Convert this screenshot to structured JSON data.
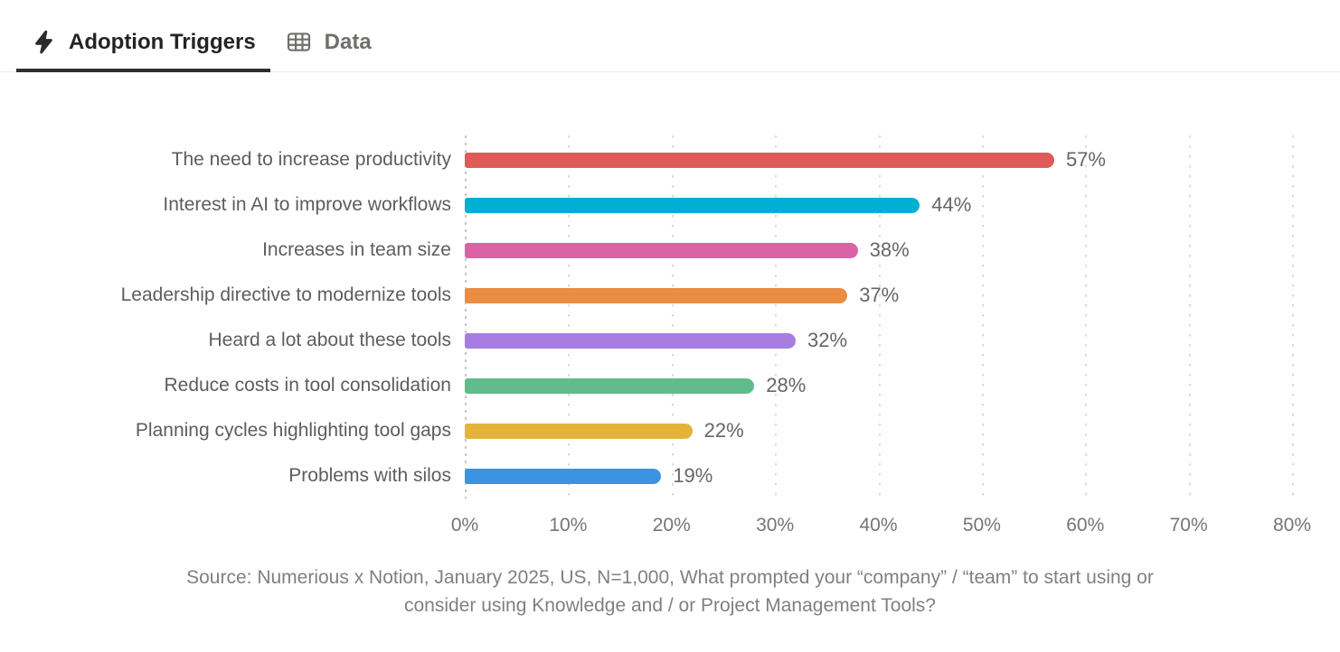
{
  "tabs": [
    {
      "label": "Adoption Triggers",
      "icon": "lightning-icon",
      "active": true
    },
    {
      "label": "Data",
      "icon": "table-icon",
      "active": false
    }
  ],
  "chart_data": {
    "type": "bar",
    "orientation": "horizontal",
    "title": "Adoption Triggers",
    "categories": [
      "The need to increase productivity",
      "Interest in AI to improve workflows",
      "Increases in team size",
      "Leadership directive to modernize tools",
      "Heard a lot about these tools",
      "Reduce costs in tool consolidation",
      "Planning cycles highlighting tool gaps",
      "Problems with silos"
    ],
    "values": [
      57,
      44,
      38,
      37,
      32,
      28,
      22,
      19
    ],
    "value_labels": [
      "57%",
      "44%",
      "38%",
      "37%",
      "32%",
      "28%",
      "22%",
      "19%"
    ],
    "bar_colors": [
      "#DE5B57",
      "#00AFD2",
      "#DB63A5",
      "#E98C44",
      "#A87DE1",
      "#61BB8C",
      "#E4B33A",
      "#3B93E1"
    ],
    "xlim": [
      0,
      80
    ],
    "x_ticks": [
      "0%",
      "10%",
      "20%",
      "30%",
      "40%",
      "50%",
      "60%",
      "70%",
      "80%"
    ],
    "grid": "dotted-vertical",
    "legend": "none",
    "xlabel": "",
    "ylabel": ""
  },
  "source": {
    "line1": "Source: Numerious x Notion, January 2025, US, N=1,000, What prompted your “company” / “team” to start using or",
    "line2": "consider using Knowledge and / or Project Management Tools?"
  },
  "colors": {
    "active_tab_text": "#232326",
    "inactive_tab_text": "#6f6f6c",
    "tab_underline": "#2f2f31",
    "tabbar_border": "#ececea",
    "gridline": "#dadada",
    "axis_line": "#c6c6c6",
    "category_label": "#5d5d5d",
    "value_label": "#666666",
    "tick_label": "#757575",
    "source_text": "#808080"
  }
}
